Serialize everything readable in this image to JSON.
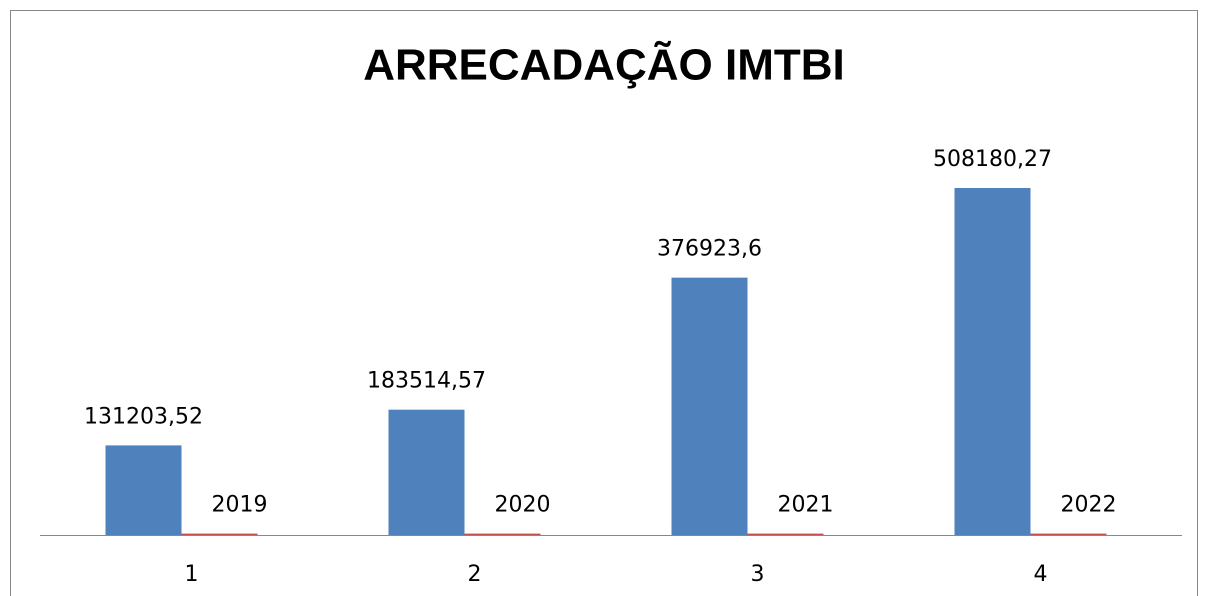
{
  "chart_data": {
    "type": "bar",
    "title": "ARRECADAÇÃO IMTBI",
    "categories": [
      "1",
      "2",
      "3",
      "4"
    ],
    "series": [
      {
        "color": "#4f81bd",
        "values": [
          131203.52,
          183514.57,
          376923.6,
          508180.27
        ],
        "value_labels": [
          "131203,52",
          "183514,57",
          "376923,6",
          "508180,27"
        ]
      },
      {
        "color": "#c0504d",
        "values": [
          2019,
          2020,
          2021,
          2022
        ]
      }
    ]
  }
}
